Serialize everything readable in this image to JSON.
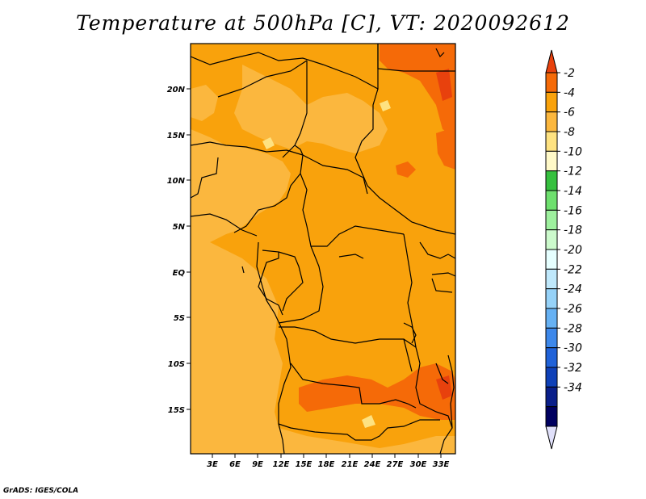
{
  "title": "Temperature at 500hPa [C], VT: 2020092612",
  "credit": "GrADS: IGES/COLA",
  "map": {
    "lat_ticks": [
      "20N",
      "15N",
      "10N",
      "5N",
      "EQ",
      "5S",
      "10S",
      "15S"
    ],
    "lon_ticks": [
      "3E",
      "6E",
      "9E",
      "12E",
      "15E",
      "18E",
      "21E",
      "24E",
      "27E",
      "30E",
      "33E"
    ]
  },
  "colorbar": {
    "labels": [
      "-2",
      "-4",
      "-6",
      "-8",
      "-10",
      "-12",
      "-14",
      "-16",
      "-18",
      "-20",
      "-22",
      "-24",
      "-26",
      "-28",
      "-30",
      "-32",
      "-34"
    ],
    "colors": [
      "#e8410d",
      "#f56a08",
      "#f9a20c",
      "#fbb73e",
      "#fee281",
      "#fff9c8",
      "#36c03f",
      "#6ee06e",
      "#9ef09e",
      "#ccfacc",
      "#e6ffff",
      "#bfe8fb",
      "#96d2f8",
      "#66b1f3",
      "#3d88ea",
      "#2062d8",
      "#0f41b8",
      "#0a1f8a",
      "#000060",
      "#e0e0fa"
    ]
  }
}
